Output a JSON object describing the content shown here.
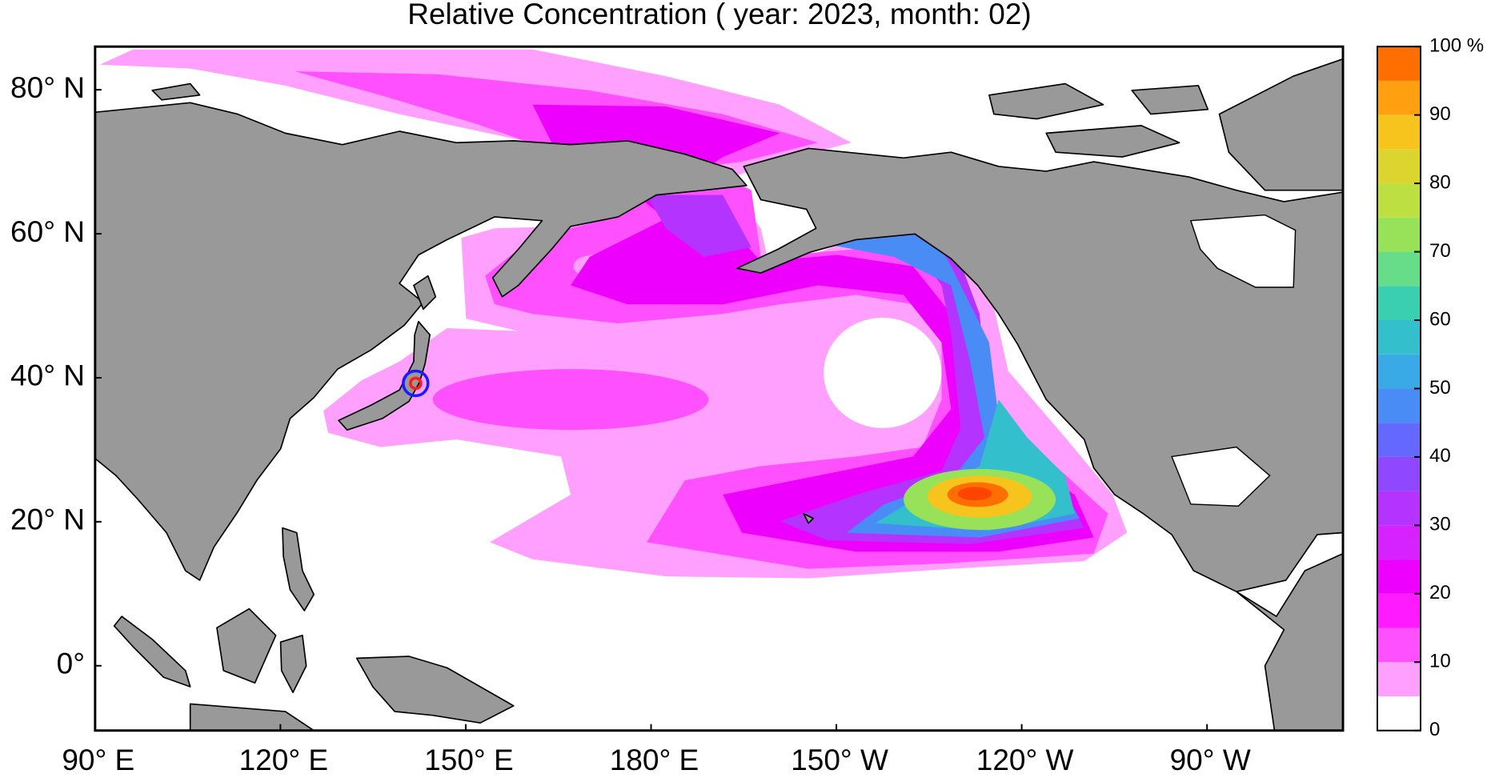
{
  "map": {
    "title": "Relative Concentration ( year: 2023, month: 02)",
    "lon_lim": [
      90,
      292
    ],
    "lat_lim": [
      -9,
      86
    ],
    "lon_ticks": [
      {
        "value": 90,
        "label": "90° E"
      },
      {
        "value": 120,
        "label": "120° E"
      },
      {
        "value": 150,
        "label": "150° E"
      },
      {
        "value": 180,
        "label": "180° E"
      },
      {
        "value": 210,
        "label": "150° W"
      },
      {
        "value": 240,
        "label": "120° W"
      },
      {
        "value": 270,
        "label": "90° W"
      }
    ],
    "lat_ticks": [
      {
        "value": 80,
        "label": "80° N"
      },
      {
        "value": 60,
        "label": "60° N"
      },
      {
        "value": 40,
        "label": "40° N"
      },
      {
        "value": 20,
        "label": "20° N"
      },
      {
        "value": 0,
        "label": "0°"
      }
    ]
  },
  "colorbar": {
    "levels": [
      0,
      5,
      10,
      15,
      20,
      25,
      30,
      35,
      40,
      45,
      50,
      55,
      60,
      65,
      70,
      75,
      80,
      85,
      90,
      95,
      100
    ],
    "colors": [
      "#ffffff",
      "#ffa0ff",
      "#ff50ff",
      "#ff1aff",
      "#ee00ff",
      "#d522ff",
      "#b533ff",
      "#8f48ff",
      "#6468ff",
      "#4a8cf5",
      "#3aaae6",
      "#33bfcc",
      "#3acfae",
      "#66dd88",
      "#98e25a",
      "#bde040",
      "#dcd530",
      "#f7c41e",
      "#ffa010",
      "#ff6e00",
      "#ff4300"
    ],
    "ticks": [
      0,
      10,
      20,
      30,
      40,
      50,
      60,
      70,
      80,
      90,
      {
        "value": 100,
        "label": "100 %"
      }
    ]
  }
}
